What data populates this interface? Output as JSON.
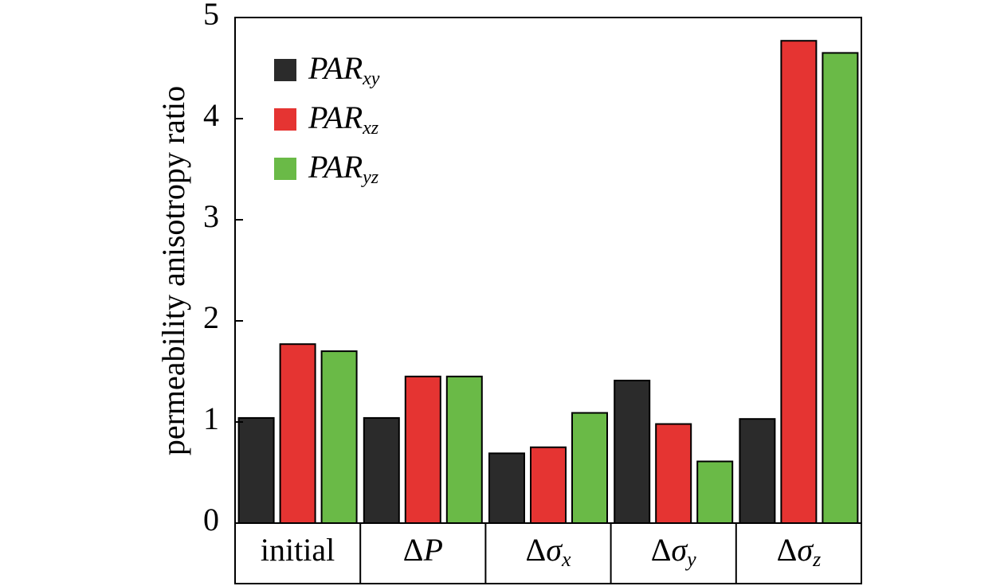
{
  "chart_data": {
    "type": "bar",
    "categories": [
      "initial",
      "ΔP",
      "Δσx",
      "Δσy",
      "Δσz"
    ],
    "category_labels": [
      {
        "main": "initial",
        "italic": "",
        "sub": ""
      },
      {
        "main": "Δ",
        "italic": "P",
        "sub": ""
      },
      {
        "main": "Δ",
        "italic": "σ",
        "sub": "x"
      },
      {
        "main": "Δ",
        "italic": "σ",
        "sub": "y"
      },
      {
        "main": "Δ",
        "italic": "σ",
        "sub": "z"
      }
    ],
    "series": [
      {
        "name": "PARxy",
        "label_main": "PAR",
        "label_sub": "xy",
        "color": "#2b2b2b",
        "values": [
          1.04,
          1.04,
          0.69,
          1.41,
          1.03
        ]
      },
      {
        "name": "PARxz",
        "label_main": "PAR",
        "label_sub": "xz",
        "color": "#e53432",
        "values": [
          1.77,
          1.45,
          0.75,
          0.98,
          4.77
        ]
      },
      {
        "name": "PARyz",
        "label_main": "PAR",
        "label_sub": "yz",
        "color": "#6aba47",
        "values": [
          1.7,
          1.45,
          1.09,
          0.61,
          4.65
        ]
      }
    ],
    "ylabel": "permeability anisotropy ratio",
    "xlabel": "",
    "title": "",
    "ylim": [
      0,
      5
    ],
    "yticks": [
      "0",
      "1",
      "2",
      "3",
      "4",
      "5"
    ],
    "grid": false,
    "legend_position": "top-left"
  }
}
